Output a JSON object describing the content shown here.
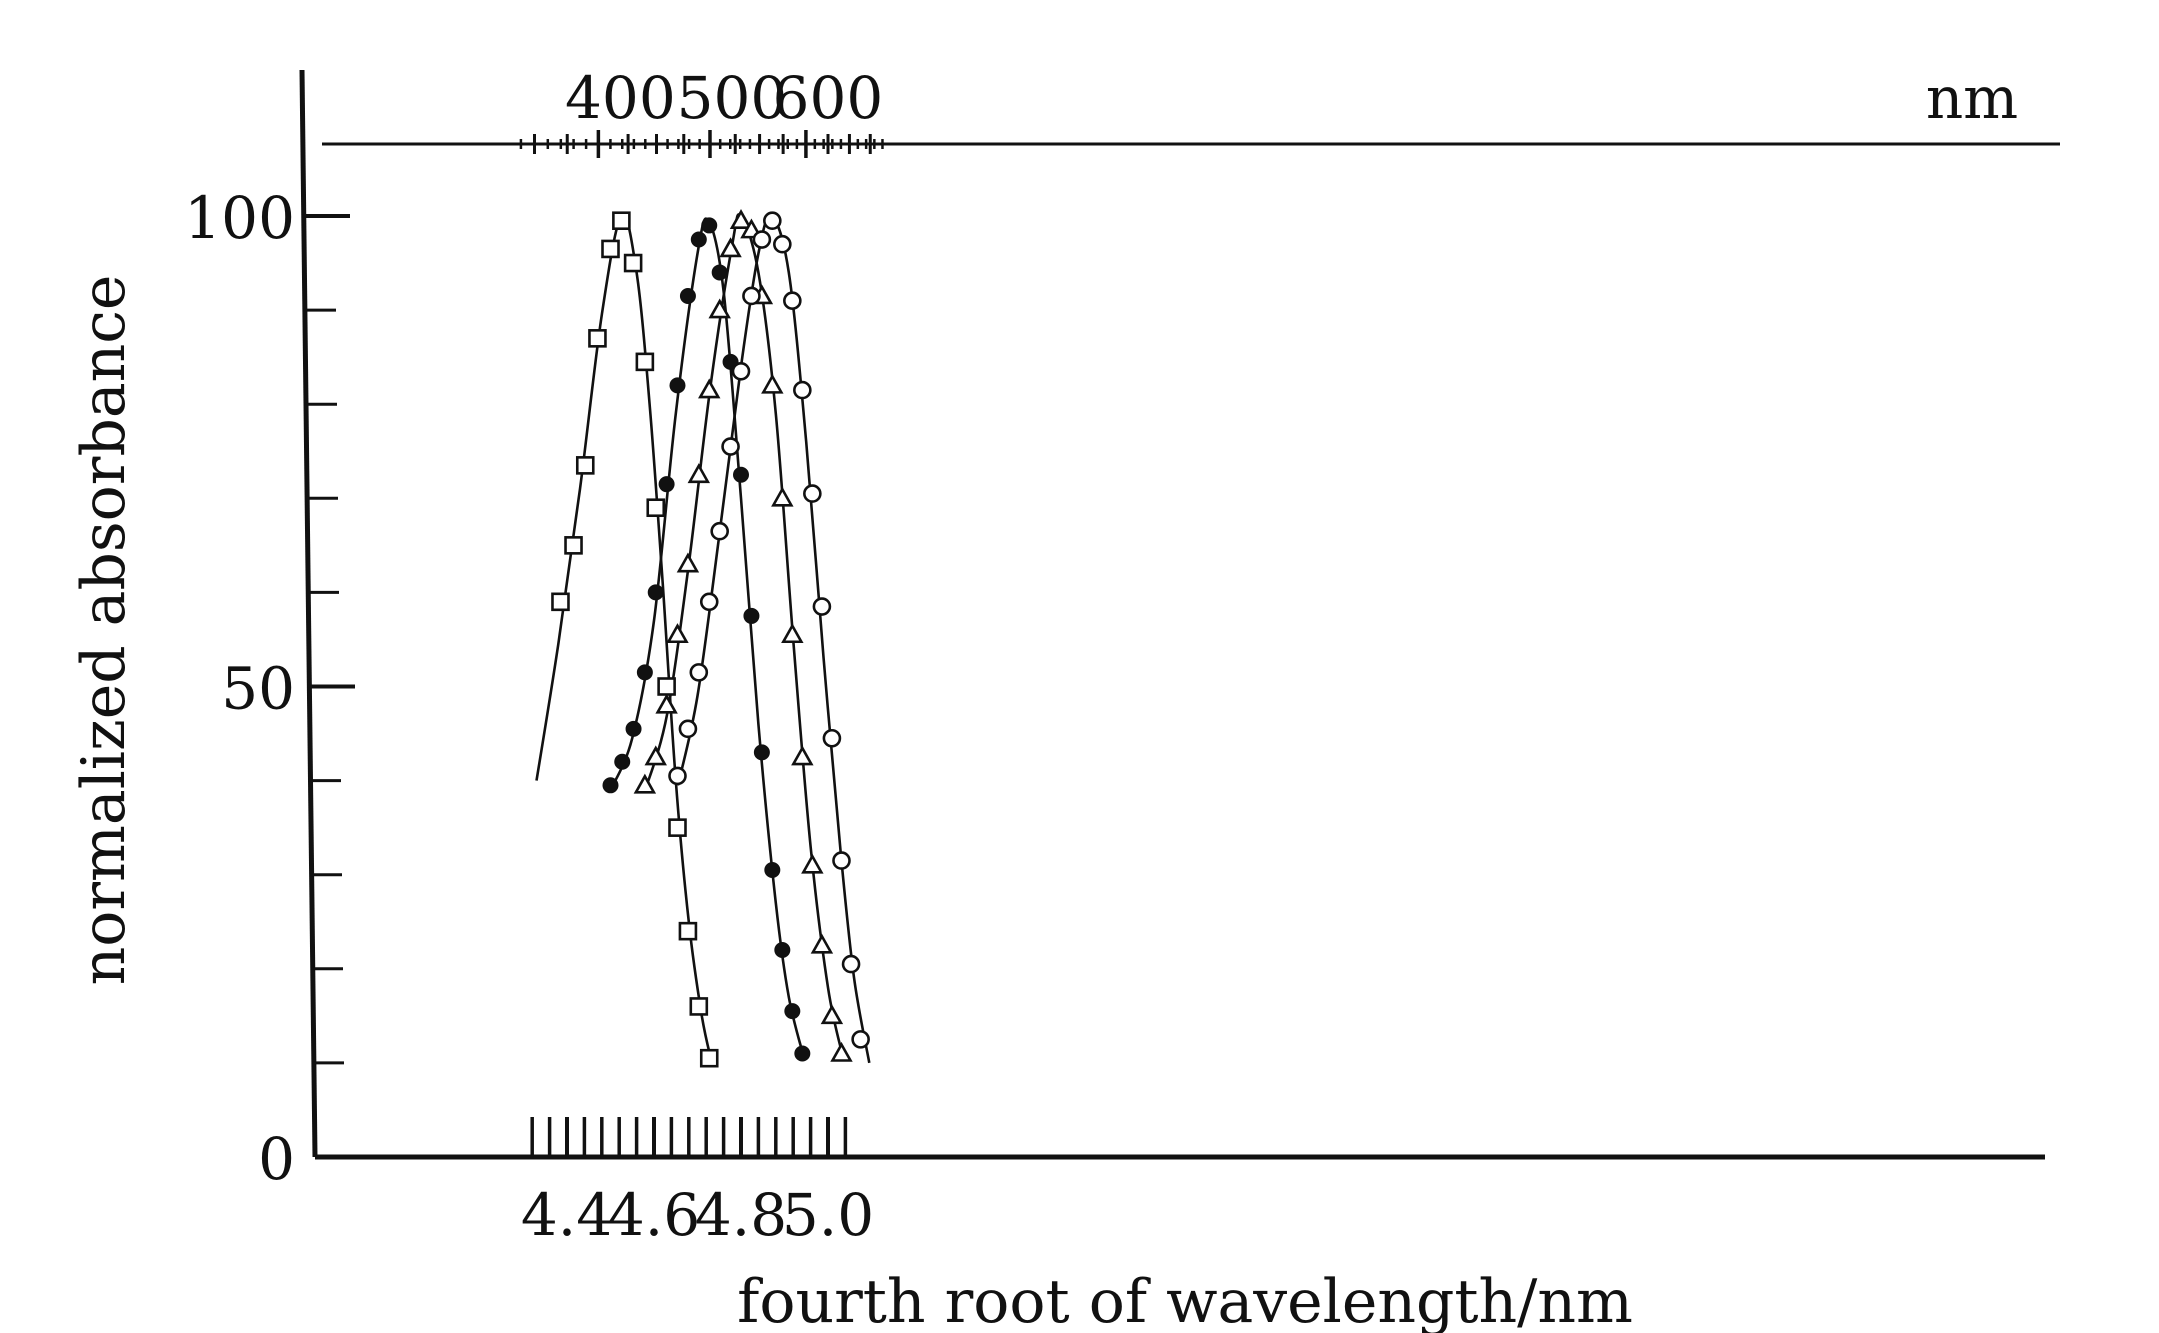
{
  "chart_data": {
    "type": "scatter",
    "xlabel": "fourth root of wavelength/nm",
    "ylabel": "normalized absorbance",
    "xlim": [
      4.3,
      5.08
    ],
    "ylim": [
      0,
      100
    ],
    "x_ticks": [
      4.4,
      4.6,
      4.8,
      5.0
    ],
    "x_tick_labels": [
      "4.4",
      "4.6",
      "4.8",
      "5.0"
    ],
    "x_minor_ticks": [
      4.32,
      4.36,
      4.44,
      4.48,
      4.52,
      4.56,
      4.64,
      4.68,
      4.72,
      4.76,
      4.84,
      4.88,
      4.92,
      4.96,
      5.04
    ],
    "y_ticks": [
      0,
      50,
      100
    ],
    "y_tick_labels": [
      "0",
      "50",
      "100"
    ],
    "y_minor_ticks": [
      10,
      20,
      30,
      40,
      60,
      70,
      80,
      90
    ],
    "top_axis": {
      "unit": "nm",
      "major_ticks": [
        400,
        500,
        600
      ],
      "major_tick_labels": [
        "400",
        "500",
        "600"
      ],
      "minor_ticks": [
        350,
        375,
        425,
        450,
        475,
        525,
        550,
        575,
        625,
        650,
        675
      ]
    },
    "grid": false,
    "series": [
      {
        "marker": "open-square",
        "points": [
          [
            4.385,
            59
          ],
          [
            4.415,
            65
          ],
          [
            4.442,
            73.5
          ],
          [
            4.47,
            87
          ],
          [
            4.5,
            96.5
          ],
          [
            4.525,
            99.5
          ],
          [
            4.552,
            95
          ],
          [
            4.579,
            84.5
          ],
          [
            4.604,
            69
          ],
          [
            4.629,
            50
          ],
          [
            4.654,
            35
          ],
          [
            4.678,
            24
          ],
          [
            4.703,
            16
          ],
          [
            4.727,
            10.5
          ]
        ],
        "curve": [
          [
            4.33,
            40
          ],
          [
            4.38,
            54.5
          ],
          [
            4.43,
            71
          ],
          [
            4.48,
            89.5
          ],
          [
            4.525,
            100
          ],
          [
            4.56,
            94
          ],
          [
            4.59,
            80
          ],
          [
            4.62,
            61
          ],
          [
            4.65,
            40
          ],
          [
            4.68,
            25
          ],
          [
            4.71,
            15
          ],
          [
            4.733,
            10
          ]
        ]
      },
      {
        "marker": "filled-circle",
        "points": [
          [
            4.5,
            39.5
          ],
          [
            4.527,
            42
          ],
          [
            4.553,
            45.5
          ],
          [
            4.579,
            51.5
          ],
          [
            4.604,
            60
          ],
          [
            4.629,
            71.5
          ],
          [
            4.654,
            82
          ],
          [
            4.678,
            91.5
          ],
          [
            4.703,
            97.5
          ],
          [
            4.727,
            99
          ],
          [
            4.751,
            94
          ],
          [
            4.776,
            84.5
          ],
          [
            4.8,
            72.5
          ],
          [
            4.824,
            57.5
          ],
          [
            4.848,
            43
          ],
          [
            4.872,
            30.5
          ],
          [
            4.895,
            22
          ],
          [
            4.918,
            15.5
          ],
          [
            4.941,
            11
          ]
        ],
        "curve": [
          [
            4.5,
            39
          ],
          [
            4.55,
            44.5
          ],
          [
            4.6,
            57
          ],
          [
            4.65,
            79
          ],
          [
            4.7,
            96
          ],
          [
            4.725,
            99.5
          ],
          [
            4.76,
            92
          ],
          [
            4.8,
            70
          ],
          [
            4.84,
            46
          ],
          [
            4.88,
            27
          ],
          [
            4.91,
            17
          ],
          [
            4.945,
            10.5
          ]
        ]
      },
      {
        "marker": "open-triangle",
        "points": [
          [
            4.579,
            39.5
          ],
          [
            4.604,
            42.5
          ],
          [
            4.629,
            48
          ],
          [
            4.654,
            55.5
          ],
          [
            4.678,
            63
          ],
          [
            4.703,
            72.5
          ],
          [
            4.727,
            81.5
          ],
          [
            4.751,
            90
          ],
          [
            4.776,
            96.5
          ],
          [
            4.8,
            99.5
          ],
          [
            4.824,
            98.5
          ],
          [
            4.848,
            91.5
          ],
          [
            4.872,
            82
          ],
          [
            4.895,
            70
          ],
          [
            4.918,
            55.5
          ],
          [
            4.941,
            42.5
          ],
          [
            4.964,
            31
          ],
          [
            4.986,
            22.5
          ],
          [
            5.009,
            15
          ],
          [
            5.031,
            11
          ]
        ],
        "curve": [
          [
            4.58,
            39
          ],
          [
            4.63,
            47
          ],
          [
            4.68,
            63
          ],
          [
            4.73,
            82
          ],
          [
            4.78,
            97
          ],
          [
            4.8,
            100
          ],
          [
            4.84,
            94
          ],
          [
            4.88,
            79
          ],
          [
            4.92,
            55
          ],
          [
            4.96,
            33
          ],
          [
            5.0,
            18
          ],
          [
            5.035,
            10.5
          ]
        ]
      },
      {
        "marker": "open-circle",
        "points": [
          [
            4.654,
            40.5
          ],
          [
            4.678,
            45.5
          ],
          [
            4.703,
            51.5
          ],
          [
            4.727,
            59
          ],
          [
            4.751,
            66.5
          ],
          [
            4.776,
            75.5
          ],
          [
            4.8,
            83.5
          ],
          [
            4.824,
            91.5
          ],
          [
            4.848,
            97.5
          ],
          [
            4.872,
            99.5
          ],
          [
            4.895,
            97
          ],
          [
            4.918,
            91
          ],
          [
            4.941,
            81.5
          ],
          [
            4.964,
            70.5
          ],
          [
            4.986,
            58.5
          ],
          [
            5.009,
            44.5
          ],
          [
            5.031,
            31.5
          ],
          [
            5.053,
            20.5
          ],
          [
            5.075,
            12.5
          ]
        ],
        "curve": [
          [
            4.655,
            39.5
          ],
          [
            4.7,
            49
          ],
          [
            4.75,
            66
          ],
          [
            4.8,
            84
          ],
          [
            4.84,
            96
          ],
          [
            4.87,
            100
          ],
          [
            4.91,
            94
          ],
          [
            4.95,
            76
          ],
          [
            4.99,
            53
          ],
          [
            5.03,
            32
          ],
          [
            5.06,
            19
          ],
          [
            5.095,
            10
          ]
        ]
      }
    ]
  }
}
